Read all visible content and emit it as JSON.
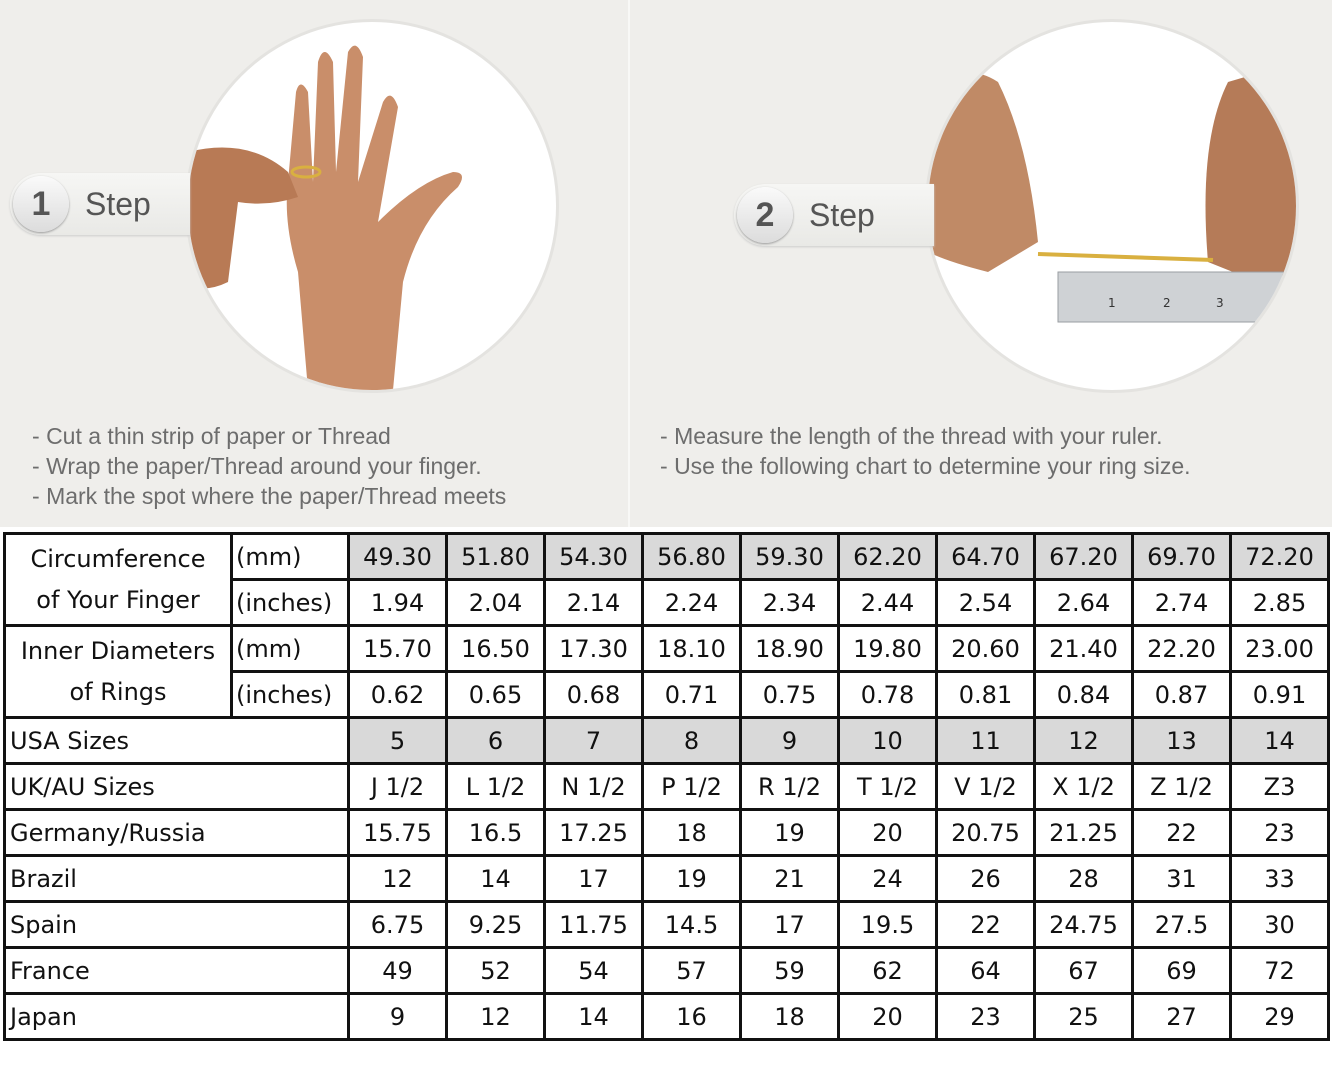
{
  "steps": [
    {
      "number": "1",
      "label": "Step",
      "notes": [
        "Cut a thin strip of paper or Thread",
        "Wrap the paper/Thread around your finger.",
        "Mark the spot where the paper/Thread meets"
      ]
    },
    {
      "number": "2",
      "label": "Step",
      "notes": [
        "Measure the length of the thread with your ruler.",
        "Use the following chart to determine your ring size."
      ]
    }
  ],
  "ruler_marks": [
    "1",
    "2",
    "3"
  ],
  "table": {
    "shade_color": "#d9d9d9",
    "groups": [
      {
        "label_lines": [
          "Circumference",
          "of Your Finger"
        ],
        "rows": [
          {
            "unit": "(mm)",
            "shaded": true,
            "values": [
              "49.30",
              "51.80",
              "54.30",
              "56.80",
              "59.30",
              "62.20",
              "64.70",
              "67.20",
              "69.70",
              "72.20"
            ]
          },
          {
            "unit": "(inches)",
            "shaded": false,
            "values": [
              "1.94",
              "2.04",
              "2.14",
              "2.24",
              "2.34",
              "2.44",
              "2.54",
              "2.64",
              "2.74",
              "2.85"
            ]
          }
        ]
      },
      {
        "label_lines": [
          "Inner Diameters",
          "of Rings"
        ],
        "rows": [
          {
            "unit": "(mm)",
            "shaded": false,
            "values": [
              "15.70",
              "16.50",
              "17.30",
              "18.10",
              "18.90",
              "19.80",
              "20.60",
              "21.40",
              "22.20",
              "23.00"
            ]
          },
          {
            "unit": "(inches)",
            "shaded": false,
            "values": [
              "0.62",
              "0.65",
              "0.68",
              "0.71",
              "0.75",
              "0.78",
              "0.81",
              "0.84",
              "0.87",
              "0.91"
            ]
          }
        ]
      }
    ],
    "rows": [
      {
        "label": "USA Sizes",
        "shaded": true,
        "values": [
          "5",
          "6",
          "7",
          "8",
          "9",
          "10",
          "11",
          "12",
          "13",
          "14"
        ]
      },
      {
        "label": "UK/AU Sizes",
        "shaded": false,
        "values": [
          "J 1/2",
          "L 1/2",
          "N 1/2",
          "P 1/2",
          "R 1/2",
          "T 1/2",
          "V 1/2",
          "X 1/2",
          "Z 1/2",
          "Z3"
        ]
      },
      {
        "label": "Germany/Russia",
        "shaded": false,
        "values": [
          "15.75",
          "16.5",
          "17.25",
          "18",
          "19",
          "20",
          "20.75",
          "21.25",
          "22",
          "23"
        ]
      },
      {
        "label": "Brazil",
        "shaded": false,
        "values": [
          "12",
          "14",
          "17",
          "19",
          "21",
          "24",
          "26",
          "28",
          "31",
          "33"
        ]
      },
      {
        "label": "Spain",
        "shaded": false,
        "values": [
          "6.75",
          "9.25",
          "11.75",
          "14.5",
          "17",
          "19.5",
          "22",
          "24.75",
          "27.5",
          "30"
        ]
      },
      {
        "label": "France",
        "shaded": false,
        "values": [
          "49",
          "52",
          "54",
          "57",
          "59",
          "62",
          "64",
          "67",
          "69",
          "72"
        ]
      },
      {
        "label": "Japan",
        "shaded": false,
        "values": [
          "9",
          "12",
          "14",
          "16",
          "18",
          "20",
          "23",
          "25",
          "27",
          "29"
        ]
      }
    ]
  }
}
